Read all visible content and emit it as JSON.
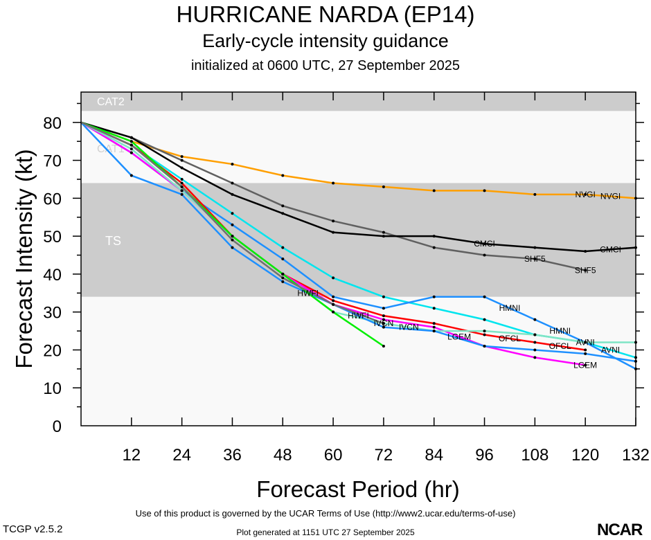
{
  "header": {
    "title": "HURRICANE NARDA (EP14)",
    "subtitle": "Early-cycle intensity guidance",
    "initialized": "initialized at 0600 UTC, 27 September 2025"
  },
  "footer": {
    "version": "TCGP v2.5.2",
    "terms": "Use of this product is governed by the UCAR Terms of Use (http://www2.ucar.edu/terms-of-use)",
    "generated": "Plot generated at 1151 UTC   27 September 2025",
    "logo": "NCAR"
  },
  "chart_data": {
    "type": "line",
    "xlabel": "Forecast Period (hr)",
    "ylabel": "Forecast Intensity (kt)",
    "xlim": [
      0,
      132
    ],
    "ylim": [
      0,
      88
    ],
    "xticks": [
      12,
      24,
      36,
      48,
      60,
      72,
      84,
      96,
      108,
      120,
      132
    ],
    "yticks": [
      0,
      10,
      20,
      30,
      40,
      50,
      60,
      70,
      80
    ],
    "bands": [
      {
        "label": "CAT2",
        "from": 83,
        "to": 88,
        "color": "#cccccc"
      },
      {
        "label": "CAT1",
        "from": 64,
        "to": 83,
        "color": "#f9f9f9"
      },
      {
        "label": "TS",
        "from": 34,
        "to": 64,
        "color": "#cccccc"
      },
      {
        "label": "",
        "from": 0,
        "to": 34,
        "color": "#f9f9f9"
      }
    ],
    "x": [
      0,
      12,
      24,
      36,
      48,
      60,
      72,
      84,
      96,
      108,
      120,
      132
    ],
    "series": [
      {
        "name": "NVGI",
        "color": "#ff9f00",
        "values": [
          80,
          75,
          71,
          69,
          66,
          64,
          63,
          62,
          62,
          61,
          61,
          60
        ]
      },
      {
        "name": "SHF5",
        "color": "#606060",
        "values": [
          80,
          76,
          70,
          64,
          58,
          54,
          51,
          47,
          45,
          44,
          41,
          null
        ]
      },
      {
        "name": "CMCI",
        "color": "#000000",
        "values": [
          80,
          76,
          68,
          61,
          56,
          51,
          50,
          50,
          48,
          47,
          46,
          47
        ]
      },
      {
        "name": "AVNI",
        "color": "#00e5ee",
        "values": [
          80,
          74,
          65,
          56,
          47,
          39,
          34,
          31,
          28,
          24,
          22,
          18
        ]
      },
      {
        "name": "HMNI",
        "color": "#1e90ff",
        "values": [
          80,
          72,
          62,
          53,
          44,
          34,
          31,
          34,
          34,
          28,
          22,
          15
        ]
      },
      {
        "name": "OFCL",
        "color": "#ff0000",
        "values": [
          80,
          74,
          64,
          50,
          40,
          33,
          29,
          27,
          24,
          22,
          20,
          null
        ]
      },
      {
        "name": "LGEM",
        "color": "#ff00ff",
        "values": [
          80,
          72,
          62,
          50,
          40,
          32,
          28,
          26,
          21,
          18,
          16,
          null
        ]
      },
      {
        "name": "IVCN",
        "color": "#7fe5c5",
        "values": [
          80,
          73,
          62,
          50,
          40,
          30,
          27,
          25,
          25,
          24,
          22,
          22
        ]
      },
      {
        "name": "HWFI",
        "color": "#1e90ff",
        "values": [
          80,
          66,
          61,
          47,
          38,
          32,
          26,
          25,
          21,
          20,
          19,
          17
        ]
      },
      {
        "name": "",
        "color": "#00ee00",
        "values": [
          80,
          75,
          63,
          50,
          40,
          30,
          21,
          null,
          null,
          null,
          null,
          null
        ]
      },
      {
        "name": "",
        "color": "#707070",
        "values": [
          80,
          74,
          63,
          49,
          39,
          32,
          27,
          null,
          null,
          null,
          null,
          null
        ]
      }
    ]
  }
}
